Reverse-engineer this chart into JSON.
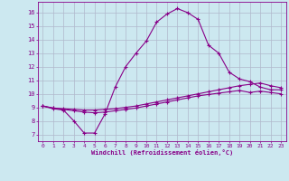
{
  "xlabel": "Windchill (Refroidissement éolien,°C)",
  "background_color": "#cce8f0",
  "grid_color": "#b0b8cc",
  "line_color": "#880088",
  "xlim": [
    -0.5,
    23.5
  ],
  "ylim": [
    6.5,
    16.8
  ],
  "xticks": [
    0,
    1,
    2,
    3,
    4,
    5,
    6,
    7,
    8,
    9,
    10,
    11,
    12,
    13,
    14,
    15,
    16,
    17,
    18,
    19,
    20,
    21,
    22,
    23
  ],
  "yticks": [
    7,
    8,
    9,
    10,
    11,
    12,
    13,
    14,
    15,
    16
  ],
  "series1_x": [
    0,
    1,
    2,
    3,
    4,
    5,
    6,
    7,
    8,
    9,
    10,
    11,
    12,
    13,
    14,
    15,
    16,
    17,
    18,
    19,
    20,
    21,
    22,
    23
  ],
  "series1_y": [
    9.1,
    8.9,
    8.8,
    8.0,
    7.1,
    7.1,
    8.5,
    10.5,
    12.0,
    13.0,
    13.9,
    15.3,
    15.9,
    16.3,
    16.0,
    15.5,
    13.6,
    13.0,
    11.6,
    11.1,
    10.9,
    10.5,
    10.3,
    10.3
  ],
  "series2_x": [
    0,
    1,
    2,
    3,
    4,
    5,
    6,
    7,
    8,
    9,
    10,
    11,
    12,
    13,
    14,
    15,
    16,
    17,
    18,
    19,
    20,
    21,
    22,
    23
  ],
  "series2_y": [
    9.1,
    8.95,
    8.9,
    8.85,
    8.8,
    8.8,
    8.85,
    8.9,
    9.0,
    9.1,
    9.25,
    9.4,
    9.55,
    9.7,
    9.85,
    10.0,
    10.15,
    10.3,
    10.45,
    10.6,
    10.7,
    10.8,
    10.6,
    10.45
  ],
  "series3_x": [
    0,
    1,
    2,
    3,
    4,
    5,
    6,
    7,
    8,
    9,
    10,
    11,
    12,
    13,
    14,
    15,
    16,
    17,
    18,
    19,
    20,
    21,
    22,
    23
  ],
  "series3_y": [
    9.1,
    8.95,
    8.85,
    8.75,
    8.65,
    8.6,
    8.65,
    8.75,
    8.85,
    8.95,
    9.1,
    9.25,
    9.4,
    9.55,
    9.7,
    9.85,
    9.95,
    10.05,
    10.15,
    10.25,
    10.1,
    10.2,
    10.1,
    10.0
  ]
}
